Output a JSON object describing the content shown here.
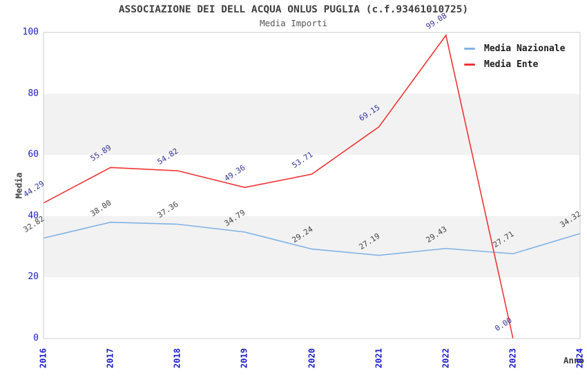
{
  "chart": {
    "title": "ASSOCIAZIONE DEI DELL ACQUA ONLUS PUGLIA (c.f.93461010725)",
    "subtitle": "Media Importi",
    "y_axis_label": "Media",
    "x_axis_label": "Anno"
  },
  "colors": {
    "nazionale_line": "#7fb2e5",
    "ente_line": "#ee3333",
    "axis_tick_text": "#1a1acc",
    "nazionale_value_label": "#404040",
    "ente_value_label": "#333399",
    "band_gray": "#f2f2f2",
    "plot_border": "#cccccc",
    "title_text": "#404040",
    "subtitle_text": "#555555"
  },
  "chart_data": {
    "type": "line",
    "title": "ASSOCIAZIONE DEI DELL ACQUA ONLUS PUGLIA (c.f.93461010725)",
    "subtitle": "Media Importi",
    "xlabel": "Anno",
    "ylabel": "Media",
    "x": [
      "2016",
      "2017",
      "2018",
      "2019",
      "2020",
      "2021",
      "2022",
      "2023",
      "2024"
    ],
    "series": [
      {
        "name": "Media Nazionale",
        "color": "#7fb2e5",
        "label_color": "#404040",
        "values": [
          32.82,
          38.0,
          37.36,
          34.79,
          29.24,
          27.19,
          29.43,
          27.71,
          34.32
        ]
      },
      {
        "name": "Media Ente",
        "color": "#ee3333",
        "label_color": "#333399",
        "values": [
          44.29,
          55.89,
          54.82,
          49.36,
          53.71,
          69.15,
          99.08,
          0.0,
          null
        ]
      }
    ],
    "ylim": [
      0,
      100
    ],
    "yticks": [
      0,
      20,
      40,
      60,
      80,
      100
    ],
    "grid": "alternating horizontal gray bands (20-40 and 60-80)",
    "legend_position": "top-right inside plot",
    "value_labels": "each point labeled with value to 2 decimals, rotated"
  }
}
